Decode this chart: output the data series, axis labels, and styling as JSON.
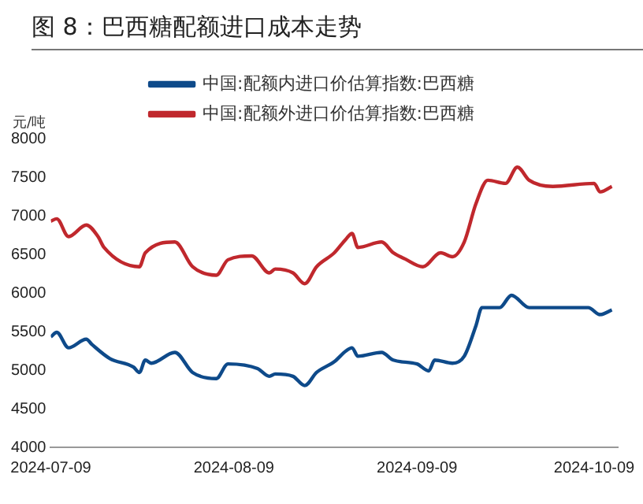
{
  "chart_data": {
    "type": "line",
    "title": "图 8：巴西糖配额进口成本走势",
    "ylabel": "元/吨",
    "legend": "top",
    "grid": false,
    "xlim": [
      "2024-07-09",
      "2024-10-13"
    ],
    "xticks": [
      "2024-07-09",
      "2024-08-09",
      "2024-09-09",
      "2024-10-09"
    ],
    "ylim": [
      4000,
      8000
    ],
    "yticks": [
      4000,
      4500,
      5000,
      5500,
      6000,
      6500,
      7000,
      7500,
      8000
    ],
    "series": [
      {
        "name": "中国:配额内进口价估算指数:巴西糖",
        "color": "#0e4a8a",
        "x": [
          "2024-07-09",
          "2024-07-10",
          "2024-07-12",
          "2024-07-15",
          "2024-07-16",
          "2024-07-19",
          "2024-07-23",
          "2024-07-24",
          "2024-07-25",
          "2024-07-26",
          "2024-07-30",
          "2024-08-02",
          "2024-08-06",
          "2024-08-08",
          "2024-08-13",
          "2024-08-15",
          "2024-08-16",
          "2024-08-19",
          "2024-08-21",
          "2024-08-23",
          "2024-08-26",
          "2024-08-28",
          "2024-08-29",
          "2024-08-30",
          "2024-09-03",
          "2024-09-05",
          "2024-09-09",
          "2024-09-11",
          "2024-09-12",
          "2024-09-15",
          "2024-09-17",
          "2024-09-19",
          "2024-09-20",
          "2024-09-23",
          "2024-09-25",
          "2024-09-28",
          "2024-10-08",
          "2024-10-10",
          "2024-10-12"
        ],
        "values": [
          5430,
          5490,
          5290,
          5400,
          5330,
          5150,
          5040,
          4970,
          5130,
          5090,
          5230,
          4970,
          4890,
          5080,
          5020,
          4920,
          4950,
          4920,
          4800,
          4970,
          5110,
          5250,
          5290,
          5180,
          5230,
          5130,
          5080,
          4990,
          5130,
          5090,
          5180,
          5580,
          5810,
          5810,
          5970,
          5810,
          5810,
          5720,
          5780
        ]
      },
      {
        "name": "中国:配额外进口价估算指数:巴西糖",
        "color": "#c0282d",
        "x": [
          "2024-07-09",
          "2024-07-10",
          "2024-07-12",
          "2024-07-15",
          "2024-07-17",
          "2024-07-18",
          "2024-07-24",
          "2024-07-25",
          "2024-07-30",
          "2024-08-02",
          "2024-08-06",
          "2024-08-08",
          "2024-08-12",
          "2024-08-15",
          "2024-08-16",
          "2024-08-19",
          "2024-08-21",
          "2024-08-23",
          "2024-08-26",
          "2024-08-28",
          "2024-08-29",
          "2024-08-30",
          "2024-09-03",
          "2024-09-05",
          "2024-09-07",
          "2024-09-10",
          "2024-09-13",
          "2024-09-15",
          "2024-09-17",
          "2024-09-19",
          "2024-09-21",
          "2024-09-24",
          "2024-09-26",
          "2024-09-28",
          "2024-10-02",
          "2024-10-09",
          "2024-10-10",
          "2024-10-12"
        ],
        "values": [
          6930,
          6960,
          6730,
          6880,
          6730,
          6590,
          6340,
          6520,
          6660,
          6340,
          6230,
          6430,
          6480,
          6260,
          6310,
          6260,
          6120,
          6340,
          6520,
          6700,
          6770,
          6590,
          6660,
          6520,
          6440,
          6340,
          6520,
          6470,
          6660,
          7160,
          7460,
          7420,
          7630,
          7460,
          7380,
          7420,
          7310,
          7380
        ]
      }
    ]
  }
}
